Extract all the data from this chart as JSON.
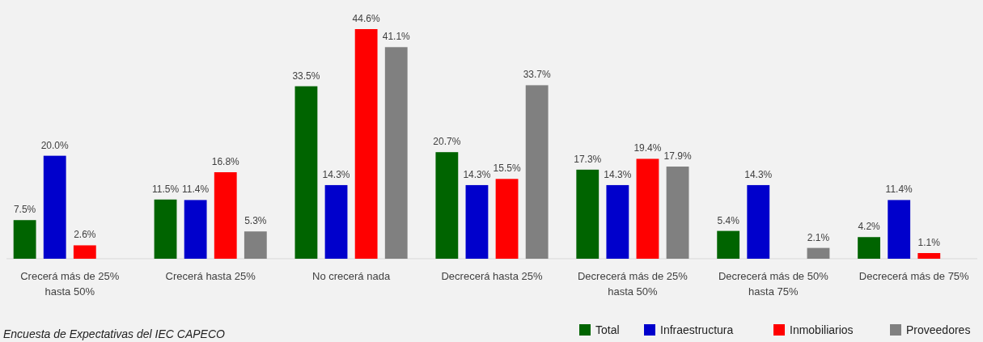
{
  "chart_data": {
    "type": "bar",
    "categories": [
      "Crecerá más de 25% hasta 50%",
      "Crecerá hasta 25%",
      "No crecerá nada",
      "Decrecerá hasta 25%",
      "Decrecerá más de 25% hasta 50%",
      "Decrecerá más de 50% hasta 75%",
      "Decrecerá más de 75%"
    ],
    "series": [
      {
        "name": "Total",
        "color": "#006400",
        "values": [
          7.5,
          11.5,
          33.5,
          20.7,
          17.3,
          5.4,
          4.2
        ],
        "value_labels": [
          "7.5%",
          "11.5%",
          "33.5%",
          "20.7%",
          "17.3%",
          "5.4%",
          "4.2%"
        ]
      },
      {
        "name": "Infraestructura",
        "color": "#0000cc",
        "values": [
          20.0,
          11.4,
          14.3,
          14.3,
          14.3,
          14.3,
          11.4
        ],
        "value_labels": [
          "20.0%",
          "11.4%",
          "14.3%",
          "14.3%",
          "14.3%",
          "14.3%",
          "11.4%"
        ]
      },
      {
        "name": "Inmobiliarios",
        "color": "#ff0000",
        "values": [
          2.6,
          16.8,
          44.6,
          15.5,
          19.4,
          null,
          1.1
        ],
        "value_labels": [
          "2.6%",
          "16.8%",
          "44.6%",
          "15.5%",
          "19.4%",
          null,
          "1.1%"
        ]
      },
      {
        "name": "Proveedores",
        "color": "#808080",
        "values": [
          null,
          5.3,
          41.1,
          33.7,
          17.9,
          2.1,
          null
        ],
        "value_labels": [
          null,
          "5.3%",
          "41.1%",
          "33.7%",
          "17.9%",
          "2.1%",
          null
        ]
      }
    ],
    "legend": "bottom right",
    "annotations": [
      "Encuesta de Expectativas del IEC CAPECO"
    ]
  }
}
